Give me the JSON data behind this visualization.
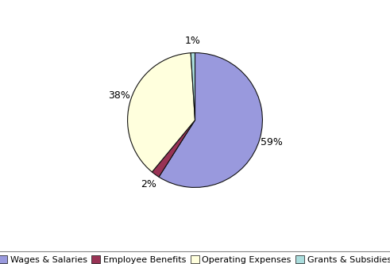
{
  "labels": [
    "Wages & Salaries",
    "Employee Benefits",
    "Operating Expenses",
    "Grants & Subsidies"
  ],
  "values": [
    59,
    2,
    38,
    1
  ],
  "colors": [
    "#9999dd",
    "#993355",
    "#ffffdd",
    "#aadddd"
  ],
  "startangle": 90,
  "background_color": "#ffffff",
  "legend_labels": [
    "Wages & Salaries",
    "Employee Benefits",
    "Operating Expenses",
    "Grants & Subsidies"
  ],
  "edge_color": "#111111",
  "edge_width": 0.8,
  "pct_fontsize": 9,
  "legend_fontsize": 8
}
